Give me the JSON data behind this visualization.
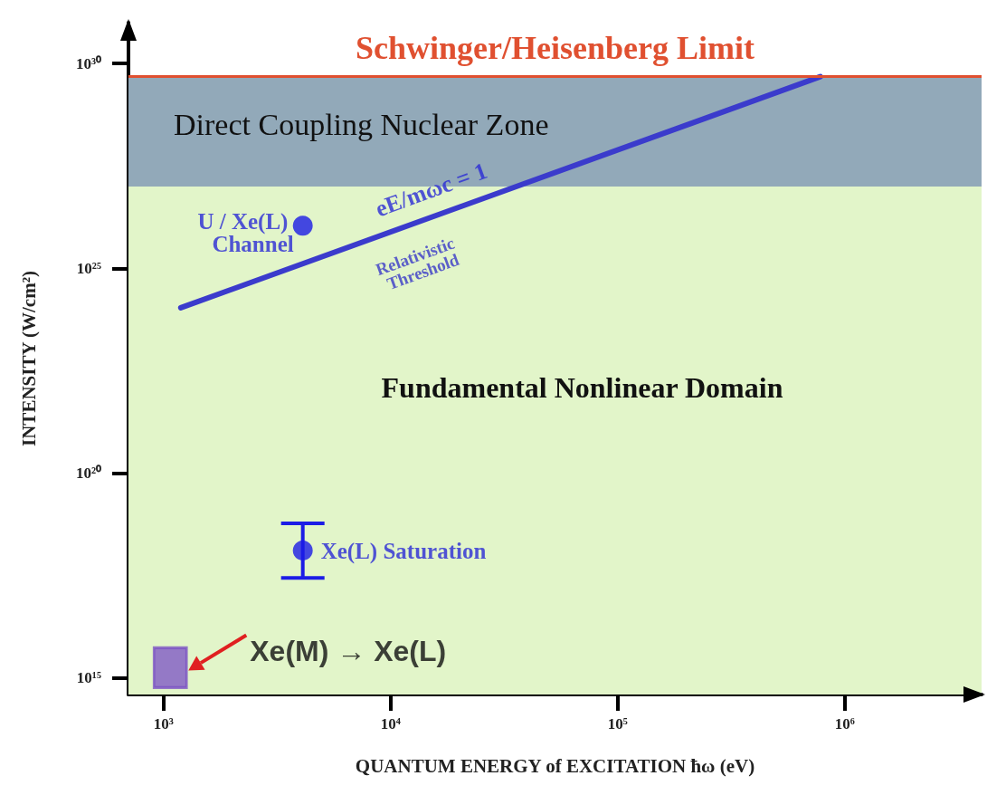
{
  "chart_data": {
    "type": "scatter",
    "xlabel": "QUANTUM ENERGY of EXCITATION ħω (eV)",
    "ylabel": "INTENSITY (W/cm²)",
    "log": "xy",
    "grid": false,
    "xlim": [
      700,
      4000000
    ],
    "xticks": [
      {
        "value": 1000,
        "label": "10³"
      },
      {
        "value": 10000,
        "label": "10⁴"
      },
      {
        "value": 100000,
        "label": "10⁵"
      },
      {
        "value": 1000000,
        "label": "10⁶"
      }
    ],
    "ylim": [
      400000000000000.0,
      1e+31
    ],
    "yticks": [
      {
        "value": 1000000000000000.0,
        "label": "10¹⁵"
      },
      {
        "value": 1e+20,
        "label": "10²⁰"
      },
      {
        "value": 1e+25,
        "label": "10²⁵"
      },
      {
        "value": 1e+30,
        "label": "10³⁰"
      }
    ],
    "series": [
      {
        "type": "line",
        "color": "#3b3bcc",
        "marker": "none",
        "line_style": "solid",
        "x": [
          1190,
          780000
        ],
        "values": [
          1.1e+24,
          4.8e+29
        ]
      },
      {
        "color": "#1c1ce6",
        "marker": "circle",
        "x": [
          4100
        ],
        "values": [
          1.1e+26
        ]
      },
      {
        "color": "#1c1ce6",
        "marker": "circle",
        "x": [
          4100
        ],
        "values": [
          1.3e+18
        ],
        "errors": [
          [
            2.8e+17,
            6e+18
          ]
        ]
      },
      {
        "color": "#7a4fc4",
        "marker": "square",
        "x": [
          1070
        ],
        "values": [
          1800000000000000.0
        ]
      }
    ],
    "bands": [
      {
        "axis": "y",
        "from": 400000000000000.0,
        "to": 1e+27,
        "label": "Fundamental Nonlinear Domain",
        "color": "#e2f5c9"
      },
      {
        "axis": "y",
        "from": 1e+27,
        "to": 4.8e+29,
        "label": "Direct Coupling Nuclear Zone",
        "color": "#92a9b9"
      }
    ],
    "ref_lines": [
      {
        "axis": "y",
        "value": 4.8e+29,
        "label": "Schwinger/Heisenberg Limit",
        "color": "#e05030"
      }
    ],
    "annotations": [
      {
        "text": "U / Xe(L) Channel",
        "x": 4100,
        "y": 1.1e+26
      },
      {
        "text": "eE/mωc = 1",
        "x": 13000,
        "y": 1.35e+26
      },
      {
        "text": "Relativistic Threshold",
        "x": 13000,
        "y": 1.35e+26
      },
      {
        "text": "Xe(L) Saturation",
        "x": 4100,
        "y": 1.3e+18
      },
      {
        "text": "Xe(M) → Xe(L)",
        "x": 1070,
        "y": 1800000000000000.0
      }
    ]
  }
}
